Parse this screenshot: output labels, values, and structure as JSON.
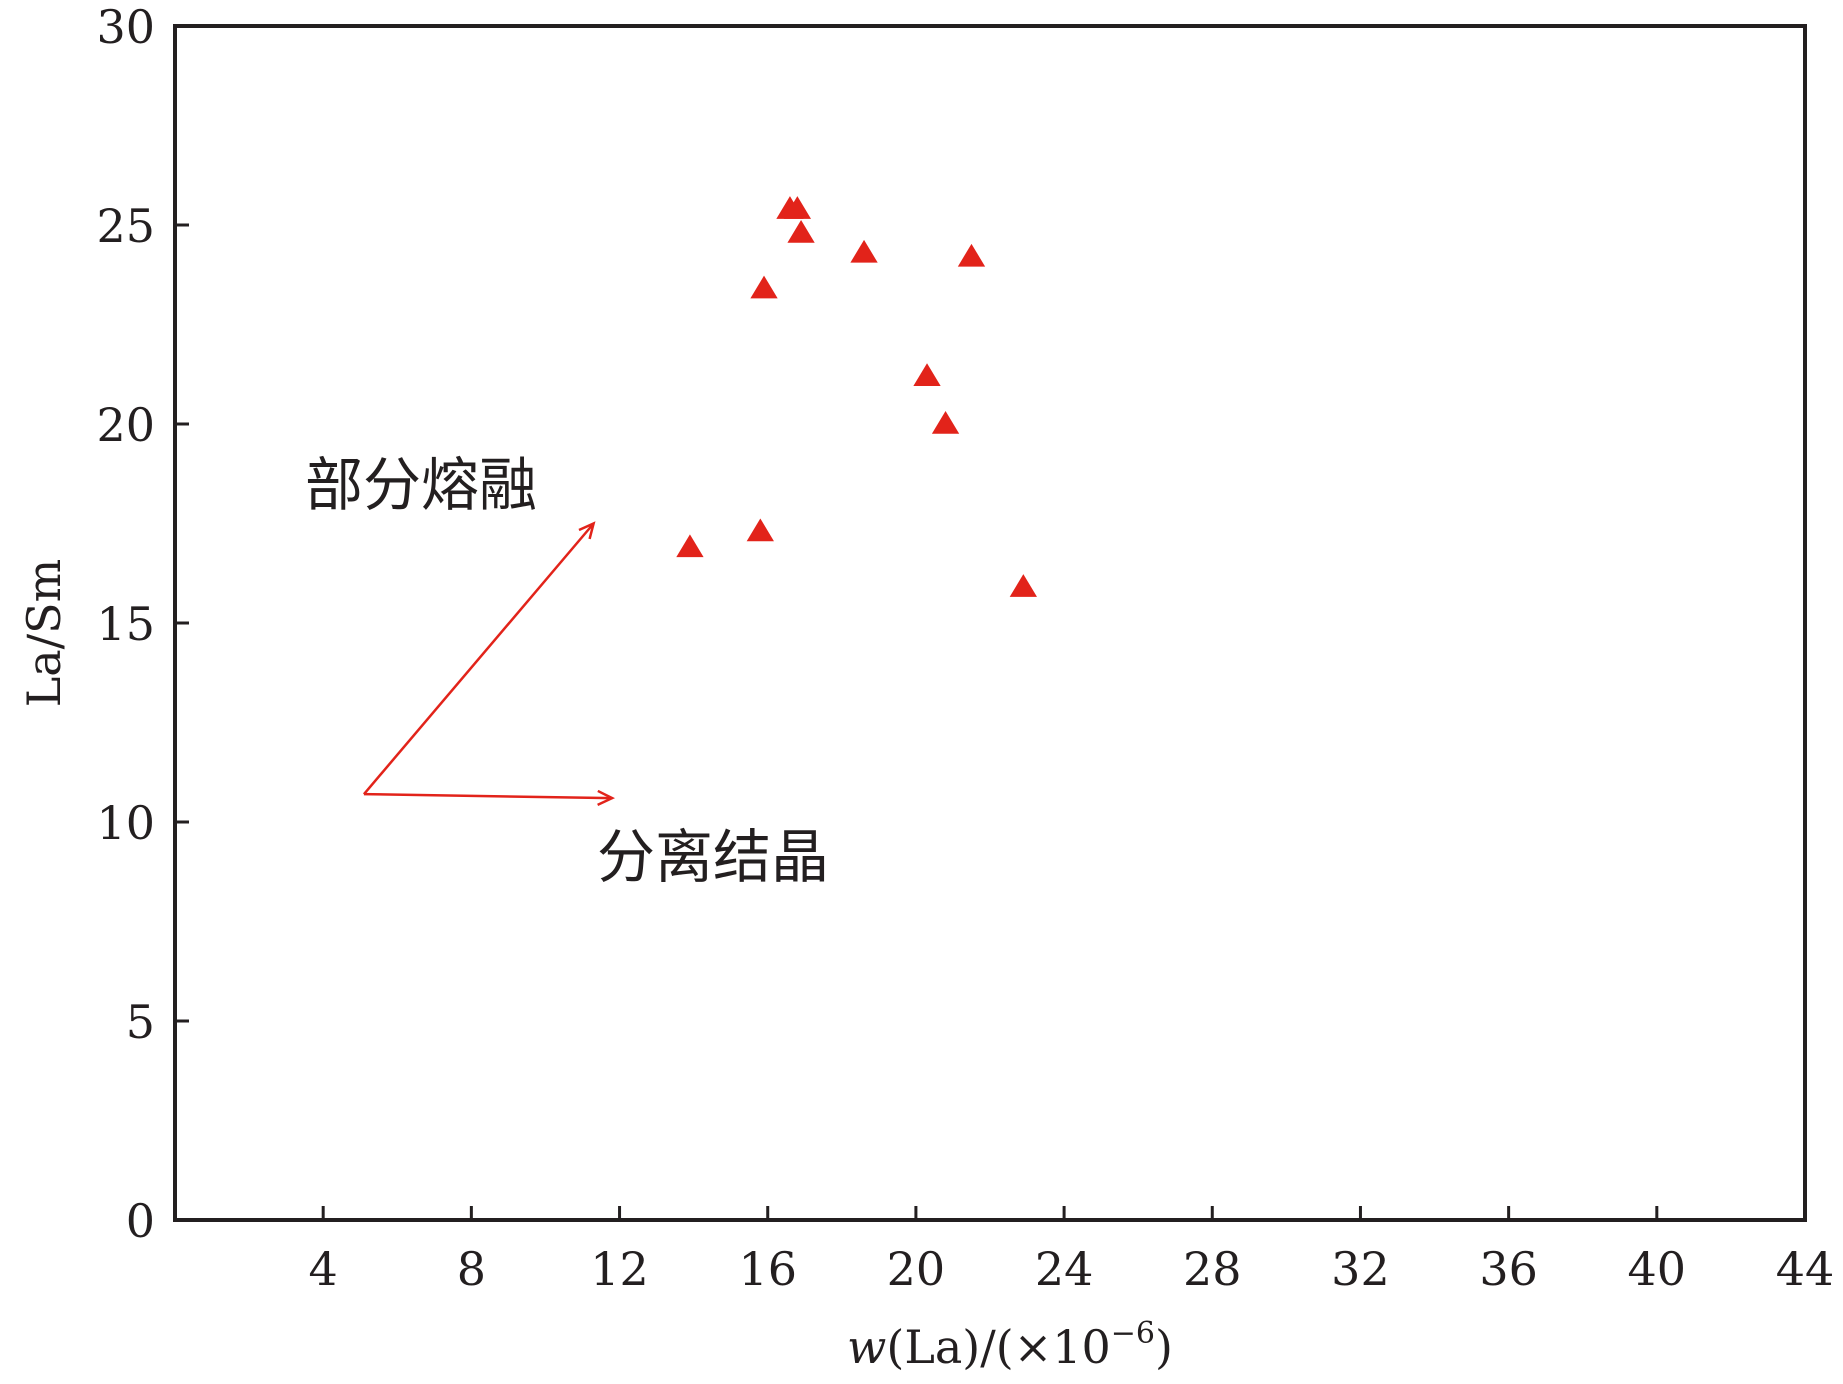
{
  "chart_data": {
    "type": "scatter",
    "title": "",
    "xlabel_prefix": "w",
    "xlabel_rest": "(La)/(×10",
    "xlabel_exp": "−6",
    "xlabel_close": ")",
    "ylabel": "La/Sm",
    "xlim": [
      0,
      44
    ],
    "ylim": [
      0,
      30
    ],
    "x_ticks": [
      4,
      8,
      12,
      16,
      20,
      24,
      28,
      32,
      36,
      40,
      44
    ],
    "y_ticks": [
      0,
      5,
      10,
      15,
      20,
      25,
      30
    ],
    "grid": false,
    "marker": "triangle",
    "marker_color": "#e2231a",
    "arrow_color": "#e2231a",
    "series": [
      {
        "points": [
          {
            "x": 13.9,
            "y": 16.9
          },
          {
            "x": 15.8,
            "y": 17.3
          },
          {
            "x": 15.9,
            "y": 23.4
          },
          {
            "x": 16.6,
            "y": 25.4
          },
          {
            "x": 16.8,
            "y": 25.4
          },
          {
            "x": 16.9,
            "y": 24.8
          },
          {
            "x": 18.6,
            "y": 24.3
          },
          {
            "x": 20.3,
            "y": 21.2
          },
          {
            "x": 20.8,
            "y": 20.0
          },
          {
            "x": 21.5,
            "y": 24.2
          },
          {
            "x": 22.9,
            "y": 15.9
          }
        ]
      }
    ],
    "annotations": [
      {
        "text": "部分熔融",
        "arrow_from": [
          5.1,
          10.7
        ],
        "arrow_to": [
          11.3,
          17.5
        ]
      },
      {
        "text": "分离结晶",
        "arrow_from": [
          5.1,
          10.7
        ],
        "arrow_to": [
          11.8,
          10.6
        ]
      }
    ]
  }
}
